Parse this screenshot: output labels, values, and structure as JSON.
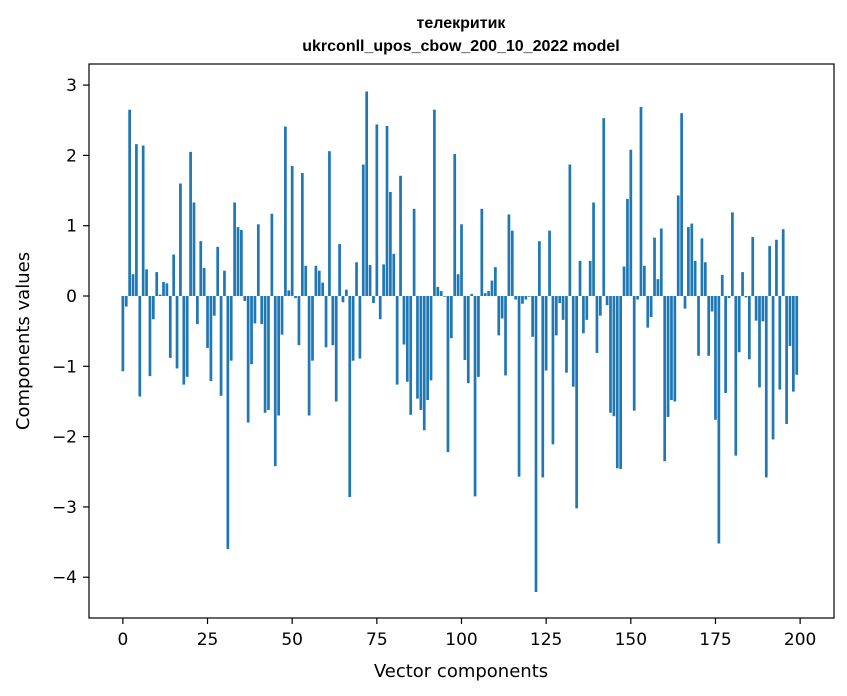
{
  "chart_data": {
    "type": "bar",
    "title": "телекритик",
    "subtitle": "ukrconll_upos_cbow_200_10_2022 model",
    "xlabel": "Vector components",
    "ylabel": "Components values",
    "xlim": [
      -10,
      210
    ],
    "ylim": [
      -4.58,
      3.3
    ],
    "xticks": [
      0,
      25,
      50,
      75,
      100,
      125,
      150,
      175,
      200
    ],
    "xtick_labels": [
      "0",
      "25",
      "50",
      "75",
      "100",
      "125",
      "150",
      "175",
      "200"
    ],
    "yticks": [
      3,
      2,
      1,
      0,
      -1,
      -2,
      -3,
      -4
    ],
    "ytick_labels": [
      "3",
      "2",
      "1",
      "0",
      "−1",
      "−2",
      "−3",
      "−4"
    ],
    "bar_color": "#1f77b4",
    "grid": false,
    "values": [
      -1.07,
      -0.15,
      2.65,
      0.31,
      2.16,
      -1.43,
      2.14,
      0.38,
      -1.14,
      -0.33,
      0.34,
      0.02,
      0.2,
      0.18,
      -0.88,
      0.59,
      -1.03,
      1.6,
      -1.26,
      -1.15,
      2.05,
      1.33,
      -0.4,
      0.78,
      0.4,
      -0.74,
      -1.21,
      -0.28,
      0.7,
      -1.42,
      0.36,
      -3.6,
      -0.92,
      1.33,
      0.98,
      0.94,
      -0.07,
      -1.8,
      -0.97,
      -0.39,
      1.02,
      -0.4,
      -1.66,
      -1.62,
      1.17,
      -2.42,
      -1.7,
      -0.55,
      2.41,
      0.08,
      1.85,
      -0.03,
      -0.7,
      1.75,
      0.43,
      -1.7,
      -0.92,
      0.43,
      0.36,
      0.19,
      -0.73,
      2.06,
      -0.7,
      -1.5,
      0.74,
      -0.09,
      0.09,
      -2.86,
      -0.92,
      0.48,
      -0.89,
      1.87,
      2.91,
      0.44,
      -0.1,
      2.44,
      -0.33,
      0.45,
      2.42,
      1.48,
      0.6,
      -1.26,
      1.71,
      -0.69,
      -1.22,
      -1.69,
      1.24,
      -1.46,
      -1.62,
      -1.91,
      -1.48,
      -1.2,
      2.65,
      0.13,
      0.07,
      -0.01,
      -2.22,
      -0.6,
      2.02,
      0.31,
      1.02,
      -0.91,
      -1.24,
      0.03,
      -2.85,
      -1.15,
      1.24,
      0.04,
      0.07,
      0.22,
      0.41,
      -0.56,
      -0.32,
      -1.13,
      1.16,
      0.93,
      -0.05,
      -2.57,
      -0.11,
      -0.05,
      -0.01,
      -0.58,
      -4.21,
      0.78,
      -2.58,
      -1.06,
      0.93,
      -2.11,
      -0.56,
      -0.1,
      -0.34,
      -1.09,
      1.87,
      -1.29,
      -3.02,
      0.5,
      -0.53,
      -0.34,
      0.5,
      1.33,
      -0.81,
      -0.28,
      2.53,
      -0.13,
      -1.66,
      -1.71,
      -2.45,
      -2.46,
      0.42,
      1.38,
      2.08,
      -1.63,
      -0.05,
      2.69,
      0.43,
      -0.45,
      -0.3,
      0.83,
      0.24,
      0.96,
      -2.35,
      -1.72,
      -1.48,
      -1.5,
      1.43,
      2.6,
      -0.18,
      0.98,
      1.03,
      0.5,
      -0.85,
      0.82,
      0.48,
      -0.85,
      -0.22,
      -1.76,
      -3.52,
      0.3,
      -1.38,
      -0.03,
      1.19,
      -2.27,
      -0.8,
      0.34,
      -0.02,
      -0.9,
      0.84,
      -0.35,
      -1.3,
      -0.36,
      -2.58,
      0.71,
      -2.04,
      0.8,
      -1.33,
      0.95,
      -1.82,
      -0.71,
      -1.36,
      -1.12
    ]
  }
}
